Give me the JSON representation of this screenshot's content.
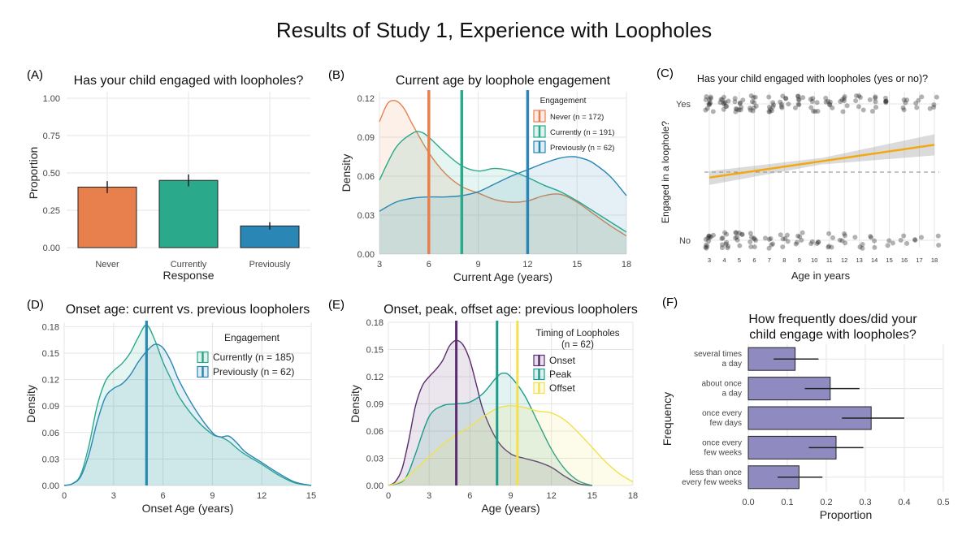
{
  "figure_title": "Results of Study 1, Experience with Loopholes",
  "colors": {
    "never": "#E8804E",
    "currently": "#2BA98B",
    "previously": "#2A86B5",
    "onset": "#5B2C6F",
    "peak": "#1C9B8B",
    "offset": "#F2E14C",
    "trend": "#F3A712",
    "freq": "#8F8BC0",
    "grid": "#E5E5E5"
  },
  "chart_data": [
    {
      "panel": "(A)",
      "type": "bar",
      "title": "Has your child engaged with loopholes?",
      "xlabel": "Response",
      "ylabel": "Proportion",
      "categories": [
        "Never",
        "Currently",
        "Previously"
      ],
      "values": [
        0.405,
        0.45,
        0.145
      ],
      "errors": [
        0.04,
        0.04,
        0.025
      ],
      "ylim": [
        0,
        1.0
      ],
      "yticks": [
        "0.00",
        "0.25",
        "0.50",
        "0.75",
        "1.00"
      ]
    },
    {
      "panel": "(B)",
      "type": "area",
      "title": "Current age by loophole engagement",
      "xlabel": "Current Age (years)",
      "ylabel": "Density",
      "xlim": [
        3,
        18
      ],
      "ylim": [
        0,
        0.125
      ],
      "xticks": [
        "3",
        "6",
        "9",
        "12",
        "15",
        "18"
      ],
      "yticks": [
        "0.00",
        "0.03",
        "0.06",
        "0.09",
        "0.12"
      ],
      "legend_title": "Engagement",
      "series": [
        {
          "name": "Never (n = 172)",
          "key": "never",
          "median": 6,
          "x": [
            3,
            3.5,
            4,
            4.5,
            5,
            6,
            7,
            8,
            9,
            10,
            11,
            12,
            13,
            14,
            15,
            16,
            17,
            18
          ],
          "y": [
            0.102,
            0.116,
            0.118,
            0.112,
            0.1,
            0.078,
            0.062,
            0.052,
            0.047,
            0.042,
            0.04,
            0.041,
            0.045,
            0.046,
            0.04,
            0.031,
            0.022,
            0.014
          ]
        },
        {
          "name": "Currently (n = 191)",
          "key": "currently",
          "median": 8,
          "x": [
            3,
            4,
            5,
            5.5,
            6,
            7,
            8,
            9,
            10,
            11,
            12,
            13,
            14,
            15,
            16,
            17,
            18
          ],
          "y": [
            0.057,
            0.082,
            0.093,
            0.094,
            0.09,
            0.078,
            0.068,
            0.064,
            0.066,
            0.064,
            0.059,
            0.053,
            0.048,
            0.041,
            0.033,
            0.025,
            0.017
          ]
        },
        {
          "name": "Previously (n = 62)",
          "key": "previously",
          "median": 12,
          "x": [
            3,
            4,
            5,
            6,
            7,
            8,
            9,
            10,
            11,
            12,
            13,
            14,
            14.8,
            15.5,
            16,
            17,
            18
          ],
          "y": [
            0.033,
            0.04,
            0.043,
            0.044,
            0.044,
            0.045,
            0.048,
            0.054,
            0.06,
            0.065,
            0.07,
            0.074,
            0.075,
            0.073,
            0.07,
            0.06,
            0.045
          ]
        }
      ]
    },
    {
      "panel": "(C)",
      "type": "scatter",
      "title": "Has your child engaged with loopholes (yes or no)?",
      "xlabel": "Age in years",
      "ylabel": "Engaged in a loophole?",
      "ycats": [
        "No",
        "Yes"
      ],
      "xticks": [
        "3",
        "4",
        "5",
        "6",
        "7",
        "8",
        "9",
        "10",
        "11",
        "12",
        "13",
        "14",
        "15",
        "16",
        "17",
        "18"
      ],
      "trend": {
        "x": [
          3,
          18
        ],
        "y": [
          0.46,
          0.7
        ]
      },
      "reference_line": 0.5,
      "yes_counts": [
        12,
        11,
        11,
        10,
        9,
        8,
        8,
        8,
        7,
        7,
        6,
        6,
        5,
        5,
        4,
        4
      ],
      "no_counts": [
        12,
        10,
        9,
        8,
        6,
        6,
        6,
        5,
        5,
        5,
        4,
        4,
        3,
        3,
        3,
        2
      ]
    },
    {
      "panel": "(D)",
      "type": "area",
      "title": "Onset age: current vs. previous loopholers",
      "xlabel": "Onset Age (years)",
      "ylabel": "Density",
      "xlim": [
        0,
        15
      ],
      "ylim": [
        0,
        0.185
      ],
      "xticks": [
        "0",
        "3",
        "6",
        "9",
        "12",
        "15"
      ],
      "yticks": [
        "0.00",
        "0.03",
        "0.06",
        "0.09",
        "0.12",
        "0.15",
        "0.18"
      ],
      "legend_title": "Engagement",
      "series": [
        {
          "name": "Currently (n = 185)",
          "key": "currently",
          "median": 5,
          "x": [
            0,
            0.5,
            1,
            1.5,
            2,
            2.5,
            3,
            3.5,
            4,
            4.5,
            5,
            5.5,
            6,
            6.5,
            7,
            8,
            9,
            9.5,
            10,
            10.5,
            11,
            12,
            13,
            14,
            15
          ],
          "y": [
            0.0,
            0.002,
            0.012,
            0.045,
            0.09,
            0.118,
            0.13,
            0.138,
            0.15,
            0.168,
            0.182,
            0.165,
            0.14,
            0.12,
            0.1,
            0.075,
            0.058,
            0.055,
            0.05,
            0.042,
            0.035,
            0.024,
            0.012,
            0.003,
            0.0
          ]
        },
        {
          "name": "Previously (n = 62)",
          "key": "previously",
          "median": 5,
          "x": [
            0,
            0.5,
            1,
            1.5,
            2,
            2.5,
            3,
            3.5,
            4,
            4.5,
            5,
            5.5,
            6,
            6.5,
            7,
            8,
            9,
            9.5,
            10,
            10.5,
            11,
            12,
            13,
            14,
            15
          ],
          "y": [
            0.0,
            0.002,
            0.01,
            0.035,
            0.072,
            0.1,
            0.11,
            0.115,
            0.125,
            0.14,
            0.152,
            0.16,
            0.156,
            0.14,
            0.118,
            0.085,
            0.06,
            0.055,
            0.056,
            0.048,
            0.038,
            0.026,
            0.014,
            0.004,
            0.0
          ]
        }
      ]
    },
    {
      "panel": "(E)",
      "type": "area",
      "title": "Onset, peak, offset age: previous loopholers",
      "xlabel": "Age (years)",
      "ylabel": "Density",
      "xlim": [
        0,
        18
      ],
      "ylim": [
        0,
        0.18
      ],
      "xticks": [
        "0",
        "3",
        "6",
        "9",
        "12",
        "15",
        "18"
      ],
      "yticks": [
        "0.00",
        "0.03",
        "0.06",
        "0.09",
        "0.12",
        "0.15",
        "0.18"
      ],
      "legend_title": "Timing of Loopholes",
      "legend_subtitle": "(n = 62)",
      "series": [
        {
          "name": "Onset",
          "key": "onset",
          "median": 5,
          "x": [
            0,
            0.5,
            1,
            1.5,
            2,
            2.5,
            3,
            3.5,
            4,
            4.5,
            5,
            5.5,
            6,
            6.5,
            7,
            8,
            9,
            10,
            11,
            12,
            13,
            14,
            15
          ],
          "y": [
            0.0,
            0.004,
            0.018,
            0.05,
            0.088,
            0.11,
            0.12,
            0.128,
            0.138,
            0.154,
            0.16,
            0.155,
            0.138,
            0.11,
            0.082,
            0.05,
            0.035,
            0.03,
            0.026,
            0.02,
            0.01,
            0.002,
            0.0
          ]
        },
        {
          "name": "Peak",
          "key": "peak",
          "median": 8,
          "x": [
            0,
            1,
            1.5,
            2,
            3,
            4,
            5,
            6,
            7,
            8,
            8.5,
            9,
            10,
            11,
            12,
            13,
            14,
            15
          ],
          "y": [
            0.0,
            0.004,
            0.015,
            0.035,
            0.076,
            0.088,
            0.09,
            0.092,
            0.102,
            0.12,
            0.124,
            0.12,
            0.1,
            0.07,
            0.04,
            0.018,
            0.005,
            0.0
          ]
        },
        {
          "name": "Offset",
          "key": "offset",
          "median": 9.5,
          "x": [
            0,
            1,
            2,
            3,
            4,
            5,
            6,
            7,
            8,
            9,
            10,
            11,
            12,
            13,
            14,
            15,
            16,
            17,
            18
          ],
          "y": [
            0.0,
            0.005,
            0.018,
            0.032,
            0.045,
            0.056,
            0.065,
            0.076,
            0.085,
            0.088,
            0.086,
            0.082,
            0.08,
            0.072,
            0.058,
            0.042,
            0.026,
            0.013,
            0.004
          ]
        }
      ]
    },
    {
      "panel": "(F)",
      "type": "bar",
      "orientation": "horizontal",
      "title": [
        "How frequently does/did your",
        "child engage with loopholes?"
      ],
      "xlabel": "Proportion",
      "ylabel": "Frequency",
      "categories": [
        [
          "several times",
          "a day"
        ],
        [
          "about once",
          "a day"
        ],
        [
          "once every",
          "few days"
        ],
        [
          "once every",
          "few weeks"
        ],
        [
          "less than once",
          "every few weeks"
        ]
      ],
      "values": [
        0.12,
        0.21,
        0.315,
        0.225,
        0.13
      ],
      "ci": [
        [
          0.065,
          0.18
        ],
        [
          0.145,
          0.285
        ],
        [
          0.24,
          0.4
        ],
        [
          0.155,
          0.295
        ],
        [
          0.075,
          0.19
        ]
      ],
      "xlim": [
        0,
        0.5
      ],
      "xticks": [
        "0.0",
        "0.1",
        "0.2",
        "0.3",
        "0.4",
        "0.5"
      ]
    }
  ]
}
